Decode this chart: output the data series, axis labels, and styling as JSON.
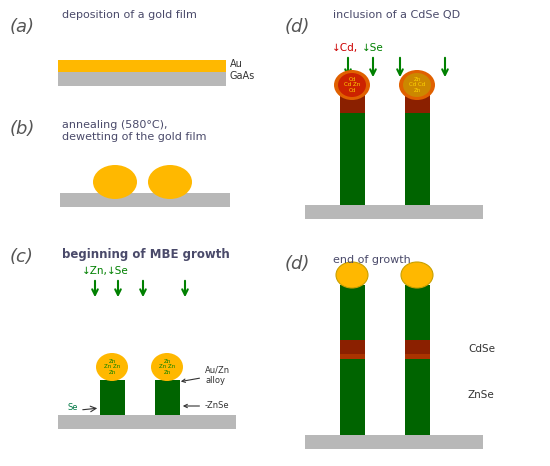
{
  "bg_color": "#ffffff",
  "gold_color": "#FFB800",
  "gaas_color": "#B8B8B8",
  "green_color": "#006400",
  "darkred_color": "#8B2000",
  "arrow_color": "#008000",
  "green_label": "#008000",
  "red_label": "#CC0000",
  "text_color": "#4a4a6a",
  "panel_label_color": "#555555",
  "annot_color": "#333333",
  "panel_labels": [
    "(a)",
    "(b)",
    "(c)",
    "(d)",
    "(d)"
  ],
  "title_a": "deposition of a gold film",
  "title_b": "annealing (580°C),\ndewetting of the gold film",
  "title_c": "beginning of MBE growth",
  "title_d1": "inclusion of a CdSe QD",
  "title_d2": "end of growth"
}
